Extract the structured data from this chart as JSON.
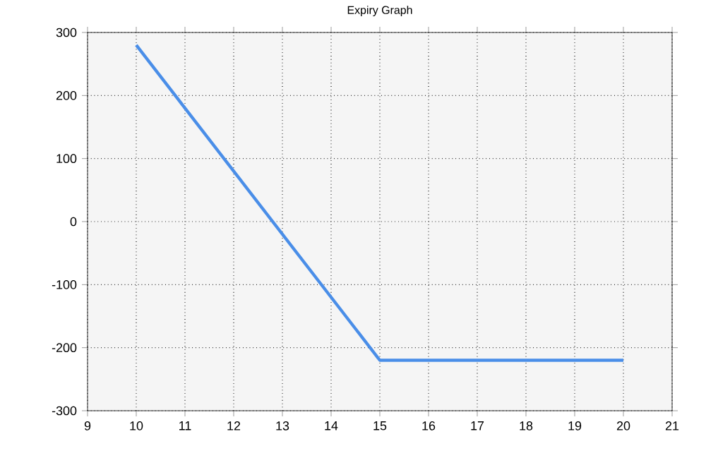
{
  "chart_data": {
    "type": "line",
    "title": "Expiry Graph",
    "x": [
      10,
      15,
      20
    ],
    "series": [
      {
        "color": "#4a8ee8",
        "values": [
          280,
          -220,
          -220
        ]
      }
    ],
    "xlim": [
      9,
      21
    ],
    "xticks": [
      9,
      10,
      11,
      12,
      13,
      14,
      15,
      16,
      17,
      18,
      19,
      20,
      21
    ],
    "ylim": [
      -300,
      300
    ],
    "yticks": [
      -300,
      -200,
      -100,
      0,
      100,
      200,
      300
    ],
    "grid": true,
    "marker": "none",
    "line_style": "solid"
  }
}
